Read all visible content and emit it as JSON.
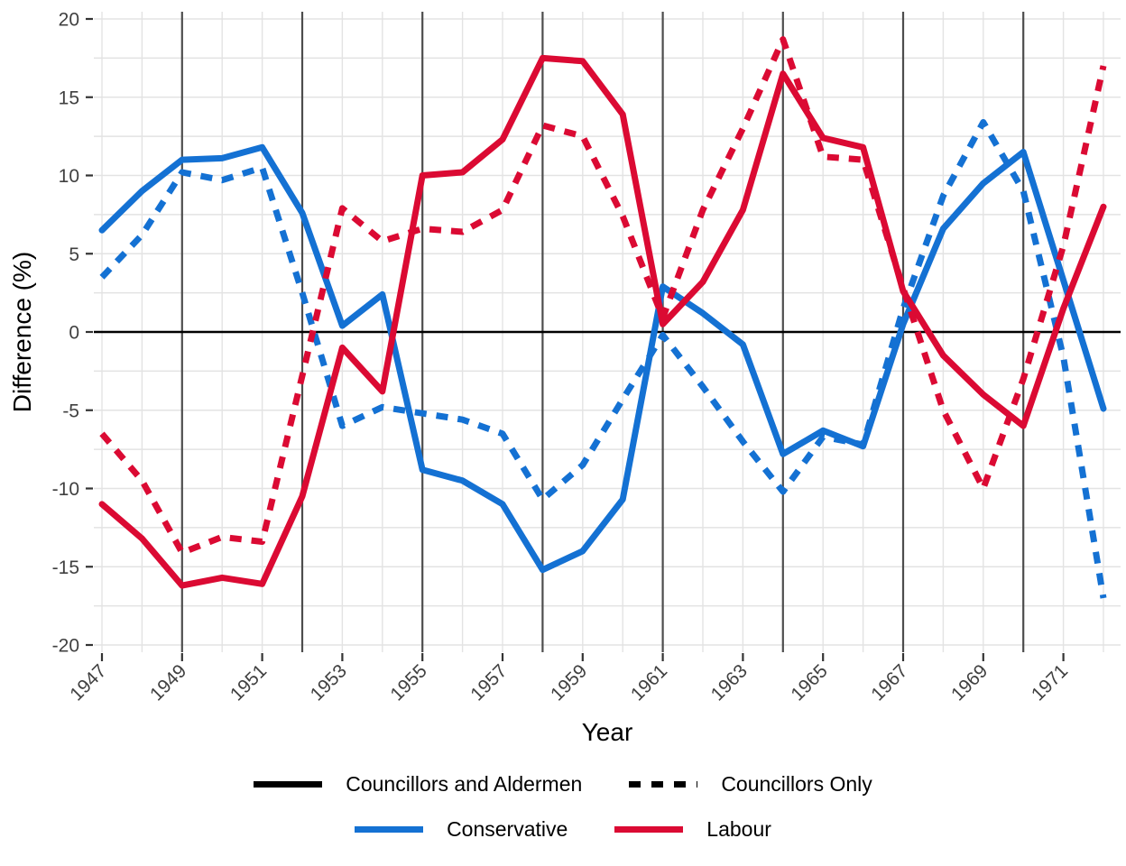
{
  "figure": {
    "x_axis_title": "Year",
    "y_axis_title": "Difference (%)"
  },
  "legend": {
    "linetype": [
      {
        "label": "Councillors and Aldermen",
        "style": "solid"
      },
      {
        "label": "Councillors Only",
        "style": "dashed"
      }
    ],
    "color": [
      {
        "label": "Conservative",
        "color": "#1471D3"
      },
      {
        "label": "Labour",
        "color": "#DB0A33"
      }
    ]
  },
  "chart_data": {
    "type": "line",
    "title": "",
    "xlabel": "Year",
    "ylabel": "Difference (%)",
    "x": [
      1947,
      1948,
      1949,
      1950,
      1951,
      1952,
      1953,
      1954,
      1955,
      1956,
      1957,
      1958,
      1959,
      1960,
      1961,
      1962,
      1963,
      1964,
      1965,
      1966,
      1967,
      1968,
      1969,
      1970,
      1971,
      1972
    ],
    "series": [
      {
        "name": "Conservative — Councillors and Aldermen",
        "party": "Conservative",
        "linetype": "solid",
        "color": "#1471D3",
        "values": [
          6.5,
          9.0,
          11.0,
          11.1,
          11.8,
          7.6,
          0.4,
          2.4,
          -8.8,
          -9.5,
          -11.0,
          -15.2,
          -14.0,
          -10.7,
          2.9,
          1.2,
          -0.8,
          -7.8,
          -6.3,
          -7.3,
          0.5,
          6.6,
          9.5,
          11.5,
          3.3,
          -4.9
        ]
      },
      {
        "name": "Conservative — Councillors Only",
        "party": "Conservative",
        "linetype": "dashed",
        "color": "#1471D3",
        "values": [
          3.5,
          6.2,
          10.2,
          9.7,
          10.5,
          2.5,
          -6.0,
          -4.8,
          -5.2,
          -5.6,
          -6.5,
          -10.7,
          -8.5,
          -4.3,
          -0.2,
          -3.5,
          -7.0,
          -10.2,
          -6.7,
          -7.2,
          1.5,
          8.7,
          13.4,
          9.0,
          -1.6,
          -17.0
        ]
      },
      {
        "name": "Labour — Councillors and Aldermen",
        "party": "Labour",
        "linetype": "solid",
        "color": "#DB0A33",
        "values": [
          -11.0,
          -13.2,
          -16.2,
          -15.7,
          -16.1,
          -10.5,
          -1.0,
          -3.8,
          10.0,
          10.2,
          12.3,
          17.5,
          17.3,
          13.9,
          0.5,
          3.2,
          7.8,
          16.5,
          12.4,
          11.8,
          2.6,
          -1.5,
          -4.0,
          -6.0,
          1.5,
          8.0
        ]
      },
      {
        "name": "Labour — Councillors Only",
        "party": "Labour",
        "linetype": "dashed",
        "color": "#DB0A33",
        "values": [
          -6.5,
          -9.5,
          -14.1,
          -13.1,
          -13.4,
          -2.8,
          7.9,
          5.8,
          6.6,
          6.4,
          7.8,
          13.2,
          12.5,
          7.4,
          0.9,
          7.8,
          13.0,
          18.7,
          11.2,
          11.0,
          2.8,
          -5.0,
          -10.0,
          -3.0,
          5.5,
          17.0
        ]
      }
    ],
    "xlim": [
      1946.8,
      1972.4
    ],
    "ylim": [
      -20,
      20
    ],
    "yticks": [
      -20,
      -15,
      -10,
      -5,
      0,
      5,
      10,
      15,
      20
    ],
    "xticks": [
      1947,
      1949,
      1951,
      1953,
      1955,
      1957,
      1959,
      1961,
      1963,
      1965,
      1967,
      1969,
      1971
    ],
    "minor_y_step": 2.5,
    "minor_x_step": 1,
    "major_vlines": [
      1949,
      1952,
      1955,
      1958,
      1961,
      1964,
      1967,
      1970
    ],
    "zero_line": true,
    "grid": true,
    "legend_position": "bottom",
    "colors": {
      "minor_grid": "#E3E3E3",
      "major_vline": "#4D4D4D",
      "zero_line": "#000000",
      "tick_text": "#404040",
      "axis_title": "#000000"
    }
  }
}
